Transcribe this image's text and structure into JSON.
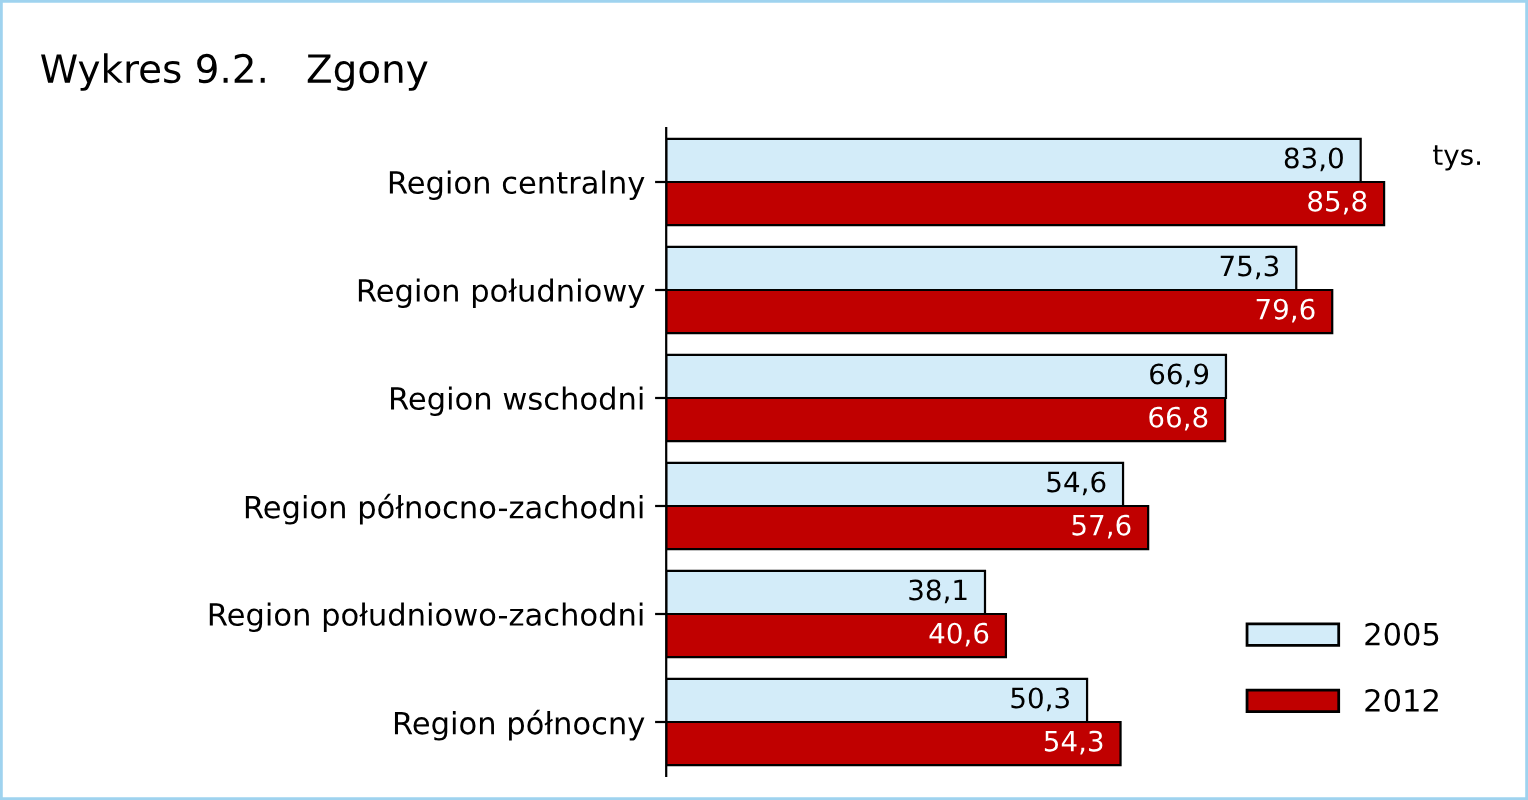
{
  "chart_data": {
    "type": "bar",
    "orientation": "horizontal",
    "title": "Wykres 9.2.   Zgony",
    "categories": [
      "Region centralny",
      "Region południowy",
      "Region wschodni",
      "Region północno-zachodni",
      "Region południowo-zachodni",
      "Region północny"
    ],
    "series": [
      {
        "name": "2005",
        "color": "#d3ecf9",
        "values": [
          83.0,
          75.3,
          66.9,
          54.6,
          38.1,
          50.3
        ],
        "value_labels": [
          "83,0",
          "75,3",
          "66,9",
          "54,6",
          "38,1",
          "50,3"
        ]
      },
      {
        "name": "2012",
        "color": "#c00000",
        "values": [
          85.8,
          79.6,
          66.8,
          57.6,
          40.6,
          54.3
        ],
        "value_labels": [
          "85,8",
          "79,6",
          "66,8",
          "57,6",
          "40,6",
          "54,3"
        ]
      }
    ],
    "tick_labels": false,
    "grid": false,
    "legend": "bottom right",
    "annotations": [
      "tys."
    ]
  }
}
